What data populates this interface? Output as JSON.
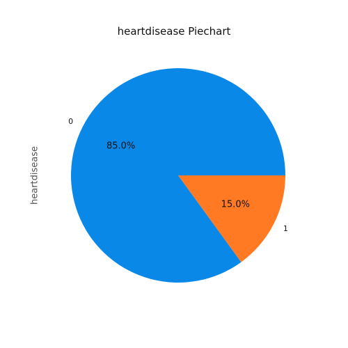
{
  "chart_data": {
    "type": "pie",
    "title": "heartdisease Piechart",
    "ylabel": "heartdisease",
    "categories": [
      "0",
      "1"
    ],
    "values": [
      85.0,
      15.0
    ],
    "autopct_labels": [
      "85.0%",
      "15.0%"
    ],
    "colors": [
      "#0a88e8",
      "#ff7a22"
    ],
    "start_angle_deg": 0,
    "direction": "counterclockwise",
    "legend": false
  }
}
